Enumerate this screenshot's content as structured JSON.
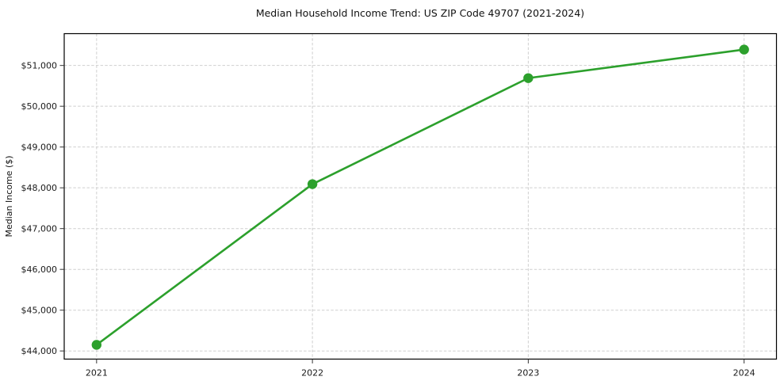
{
  "chart": {
    "title": "Median Household Income Trend: US ZIP Code 49707 (2021-2024)",
    "ylabel": "Median Income ($)"
  },
  "chart_data": {
    "type": "line",
    "title": "Median Household Income Trend: US ZIP Code 49707 (2021-2024)",
    "xlabel": "",
    "ylabel": "Median Income ($)",
    "categories": [
      "2021",
      "2022",
      "2023",
      "2024"
    ],
    "x": [
      2021,
      2022,
      2023,
      2024
    ],
    "series": [
      {
        "name": "Median Household Income",
        "values": [
          44150,
          48090,
          50690,
          51390
        ],
        "color": "#2ca02c",
        "marker": "circle"
      }
    ],
    "xticks": {
      "values": [
        2021,
        2022,
        2023,
        2024
      ],
      "labels": [
        "2021",
        "2022",
        "2023",
        "2024"
      ]
    },
    "yticks": {
      "values": [
        44000,
        45000,
        46000,
        47000,
        48000,
        49000,
        50000,
        51000
      ],
      "labels": [
        "$44,000",
        "$45,000",
        "$46,000",
        "$47,000",
        "$48,000",
        "$49,000",
        "$50,000",
        "$51,000"
      ]
    },
    "xlim": [
      2020.85,
      2024.15
    ],
    "ylim": [
      43800,
      51780
    ],
    "grid": true,
    "grid_style": "dashed",
    "legend": "none",
    "colors": {
      "line": "#2ca02c",
      "grid": "#cfcfcf",
      "spine": "#000000",
      "tick": "#333333",
      "background": "#ffffff"
    }
  }
}
